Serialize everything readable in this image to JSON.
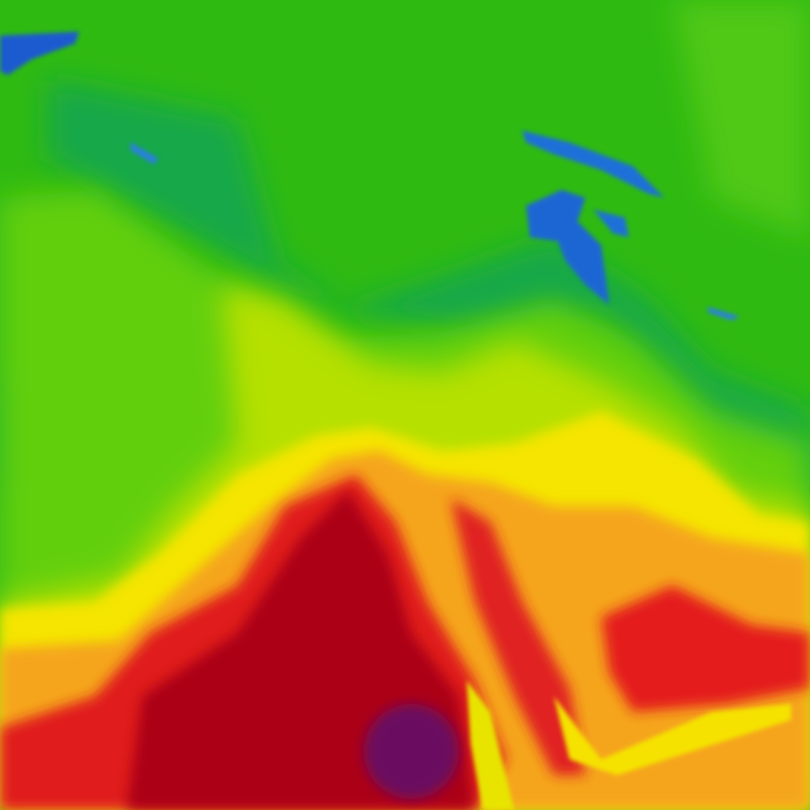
{
  "map": {
    "colors": {
      "blue": "#1f6fd8",
      "teal": "#13a05a",
      "green": "#2fba12",
      "light_green": "#5fce10",
      "yellow_green": "#b5e000",
      "yellow": "#f5e800",
      "orange": "#f5a21a",
      "red": "#e01a1a",
      "dark_red": "#a80010",
      "purple": "#6a1060"
    }
  }
}
